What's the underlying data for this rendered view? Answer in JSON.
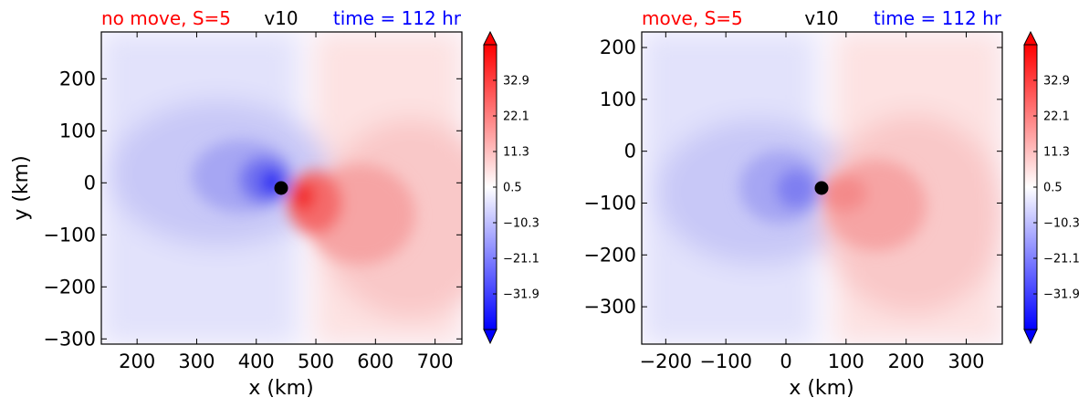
{
  "colorbar": {
    "tick_labels": [
      "32.9",
      "22.1",
      "11.3",
      "0.5",
      "−10.3",
      "−21.1",
      "−31.9"
    ],
    "tick_values": [
      32.9,
      22.1,
      11.3,
      0.5,
      -10.3,
      -21.1,
      -31.9
    ],
    "vmin": -42.7,
    "vmax": 43.7,
    "extend": "both",
    "cmap": "bwr",
    "colors": {
      "min": "#0000ff",
      "mid": "#ffffff",
      "max": "#ff0000"
    }
  },
  "chart_data": [
    {
      "type": "heatmap",
      "title_left": "no move, S=5",
      "title_center": "v10",
      "title_right": "time = 112 hr",
      "title_colors": {
        "left": "#ff0000",
        "center": "#000000",
        "right": "#0000ff"
      },
      "xlabel": "x (km)",
      "ylabel": "y (km)",
      "xlim": [
        140,
        745
      ],
      "ylim": [
        -310,
        290
      ],
      "xticks": [
        200,
        300,
        400,
        500,
        600,
        700
      ],
      "xtick_labels": [
        "200",
        "300",
        "400",
        "500",
        "600",
        "700"
      ],
      "yticks": [
        200,
        100,
        0,
        -100,
        -200,
        -300
      ],
      "ytick_labels": [
        "200",
        "100",
        "0",
        "−100",
        "−200",
        "−300"
      ],
      "center_marker": {
        "x": 443,
        "y": -12
      },
      "peak_positive": {
        "x": 470,
        "y": -35,
        "value": 40
      },
      "peak_negative": {
        "x": 420,
        "y": 0,
        "value": -38
      }
    },
    {
      "type": "heatmap",
      "title_left": "move, S=5",
      "title_center": "v10",
      "title_right": "time = 112 hr",
      "title_colors": {
        "left": "#ff0000",
        "center": "#000000",
        "right": "#0000ff"
      },
      "xlabel": "x (km)",
      "ylabel": "",
      "xlim": [
        -240,
        360
      ],
      "ylim": [
        -372,
        230
      ],
      "xticks": [
        -200,
        -100,
        0,
        100,
        200,
        300
      ],
      "xtick_labels": [
        "−200",
        "−100",
        "0",
        "100",
        "200",
        "300"
      ],
      "yticks": [
        200,
        100,
        0,
        -100,
        -200,
        -300
      ],
      "ytick_labels": [
        "200",
        "100",
        "0",
        "−100",
        "−200",
        "−300"
      ],
      "center_marker": {
        "x": 58,
        "y": -70
      },
      "peak_positive": {
        "x": 100,
        "y": -75,
        "value": 28
      },
      "peak_negative": {
        "x": 15,
        "y": -65,
        "value": -30
      }
    }
  ]
}
